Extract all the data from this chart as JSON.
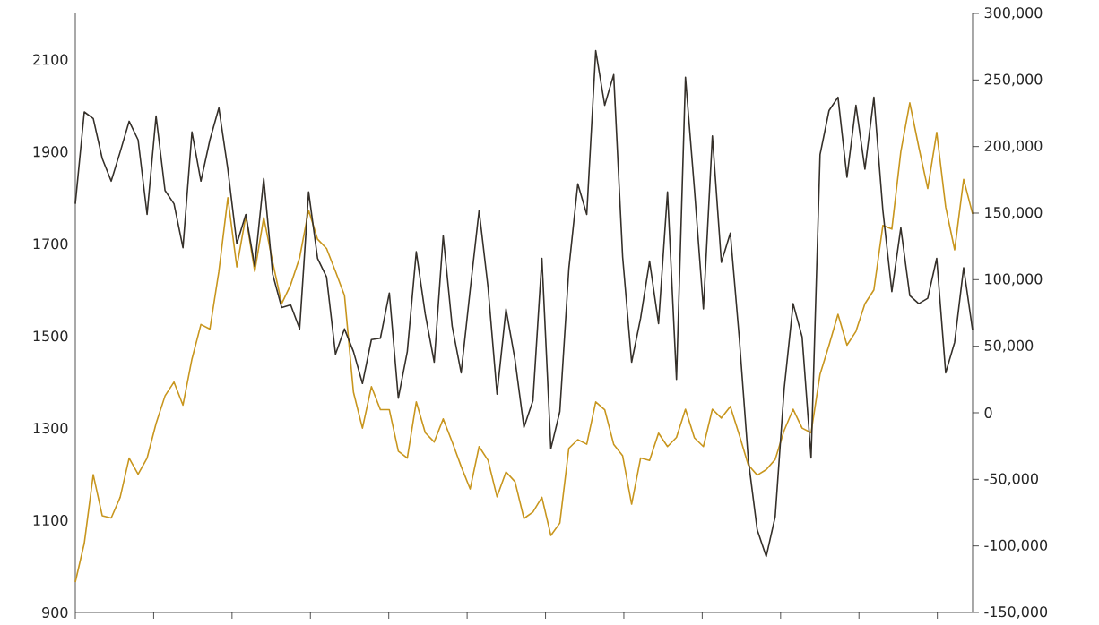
{
  "chart_data": {
    "type": "line",
    "categories": [
      null,
      null,
      null,
      null,
      null,
      null,
      null,
      null,
      null,
      null,
      null,
      null,
      null,
      null,
      null,
      null,
      null,
      null,
      null,
      null,
      null,
      null,
      null,
      null,
      null,
      null,
      null,
      null,
      null,
      null,
      null,
      null,
      null,
      null,
      null,
      null,
      null,
      null,
      null,
      null,
      null,
      null,
      null,
      null,
      null,
      null,
      null,
      null,
      null,
      null,
      null,
      null,
      null,
      null,
      null,
      null,
      null,
      null,
      null,
      null,
      null,
      null,
      null,
      null,
      null,
      null,
      null,
      null,
      null,
      null,
      null,
      null,
      null,
      null,
      null,
      null,
      null,
      null,
      null,
      null,
      null,
      null,
      null,
      null,
      null,
      null,
      null,
      null,
      null,
      null,
      null,
      null,
      null,
      null,
      null,
      null,
      null,
      null,
      null,
      null,
      null
    ],
    "ylim": [
      900,
      2200
    ],
    "yticks": [
      900,
      1100,
      1300,
      1500,
      1700,
      1900,
      2100
    ],
    "y2lim": [
      -150000,
      300000
    ],
    "y2ticks": [
      {
        "value": -150000,
        "label": "-150,000"
      },
      {
        "value": -100000,
        "label": "-100,000"
      },
      {
        "value": -50000,
        "label": "-50,000"
      },
      0,
      {
        "value": 50000,
        "label": "50,000"
      },
      {
        "value": 100000,
        "label": "100,000"
      },
      {
        "value": 150000,
        "label": "150,000"
      },
      {
        "value": 200000,
        "label": "200,000"
      },
      {
        "value": 250000,
        "label": "250,000"
      },
      {
        "value": 300000,
        "label": "300,000"
      }
    ],
    "series": [
      {
        "color": "#c8961e",
        "values": [
          966,
          1050,
          1199,
          1110,
          1105,
          1150,
          1235,
          1200,
          1235,
          1310,
          1370,
          1400,
          1350,
          1450,
          1525,
          1515,
          1640,
          1800,
          1650,
          1760,
          1640,
          1757,
          1660,
          1570,
          1611,
          1670,
          1773,
          1710,
          1690,
          1640,
          1588,
          1378,
          1300,
          1390,
          1340,
          1340,
          1250,
          1235,
          1357,
          1290,
          1270,
          1320,
          1270,
          1217,
          1168,
          1260,
          1230,
          1151,
          1205,
          1184,
          1104,
          1118,
          1150,
          1067,
          1094,
          1256,
          1275,
          1265,
          1357,
          1340,
          1265,
          1240,
          1135,
          1235,
          1230,
          1289,
          1260,
          1280,
          1341,
          1279,
          1260,
          1341,
          1322,
          1347,
          1285,
          1220,
          1198,
          1210,
          1232,
          1295,
          1341,
          1300,
          1290,
          1417,
          1480,
          1547,
          1480,
          1510,
          1570,
          1600,
          1740,
          1732,
          1900,
          2006,
          1910,
          1820,
          1942,
          1780,
          1687,
          1840,
          1765
        ]
      },
      {
        "color": "#35302a",
        "axis": "y2",
        "values": [
          157000,
          226000,
          221000,
          191000,
          174000,
          196000,
          219000,
          205000,
          149000,
          223000,
          167000,
          157000,
          124000,
          211000,
          174000,
          205000,
          229000,
          183000,
          127000,
          149000,
          110000,
          176000,
          104000,
          79000,
          81000,
          63000,
          166000,
          116000,
          102000,
          44000,
          63000,
          46000,
          22000,
          55000,
          56000,
          90000,
          11000,
          46000,
          121000,
          74000,
          38000,
          133000,
          65000,
          30000,
          92000,
          152000,
          94000,
          14000,
          78000,
          40000,
          -11000,
          9000,
          116000,
          -27000,
          1000,
          108000,
          172000,
          149000,
          272000,
          231000,
          254000,
          117000,
          38000,
          71000,
          114000,
          67000,
          166000,
          25000,
          252000,
          168000,
          78000,
          208000,
          113000,
          135000,
          56000,
          -35000,
          -88000,
          -108000,
          -78000,
          18000,
          82000,
          57000,
          -34000,
          194000,
          227000,
          237000,
          177000,
          231000,
          183000,
          237000,
          152000,
          91000,
          139000,
          88000,
          82000,
          86000,
          116000,
          30000,
          53000,
          109000,
          62000
        ]
      }
    ]
  }
}
